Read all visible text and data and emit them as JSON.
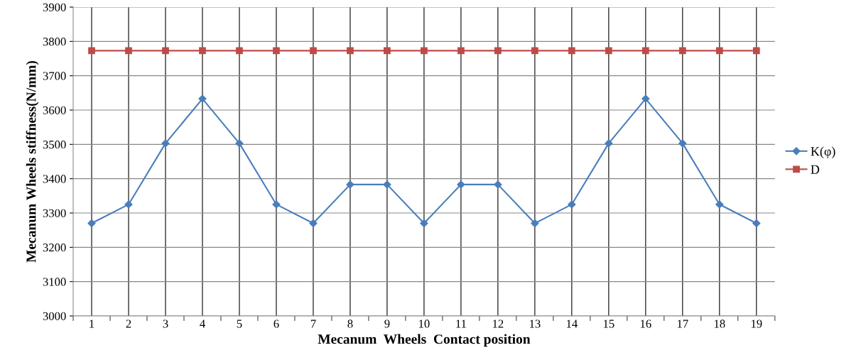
{
  "chart_data": {
    "type": "line",
    "xlabel": "Mecanum  Wheels  Contact position",
    "ylabel": "Mecanum Wheels stiffness(N/mm)",
    "categories": [
      "1",
      "2",
      "3",
      "4",
      "5",
      "6",
      "7",
      "8",
      "9",
      "10",
      "11",
      "12",
      "13",
      "14",
      "15",
      "16",
      "17",
      "18",
      "19"
    ],
    "series": [
      {
        "name": "K(φ)",
        "color": "#4a7ebb",
        "marker": "diamond",
        "values": [
          3270,
          3325,
          3503,
          3633,
          3503,
          3325,
          3270,
          3383,
          3383,
          3270,
          3383,
          3383,
          3270,
          3325,
          3503,
          3633,
          3503,
          3325,
          3270
        ]
      },
      {
        "name": "D",
        "color": "#be4b48",
        "marker": "square",
        "values": [
          3773,
          3773,
          3773,
          3773,
          3773,
          3773,
          3773,
          3773,
          3773,
          3773,
          3773,
          3773,
          3773,
          3773,
          3773,
          3773,
          3773,
          3773,
          3773
        ]
      }
    ],
    "ylim": [
      3000,
      3900
    ],
    "yticks": [
      3000,
      3100,
      3200,
      3300,
      3400,
      3500,
      3600,
      3700,
      3800,
      3900
    ],
    "grid": true,
    "legend": "right",
    "line_style": "solid"
  }
}
